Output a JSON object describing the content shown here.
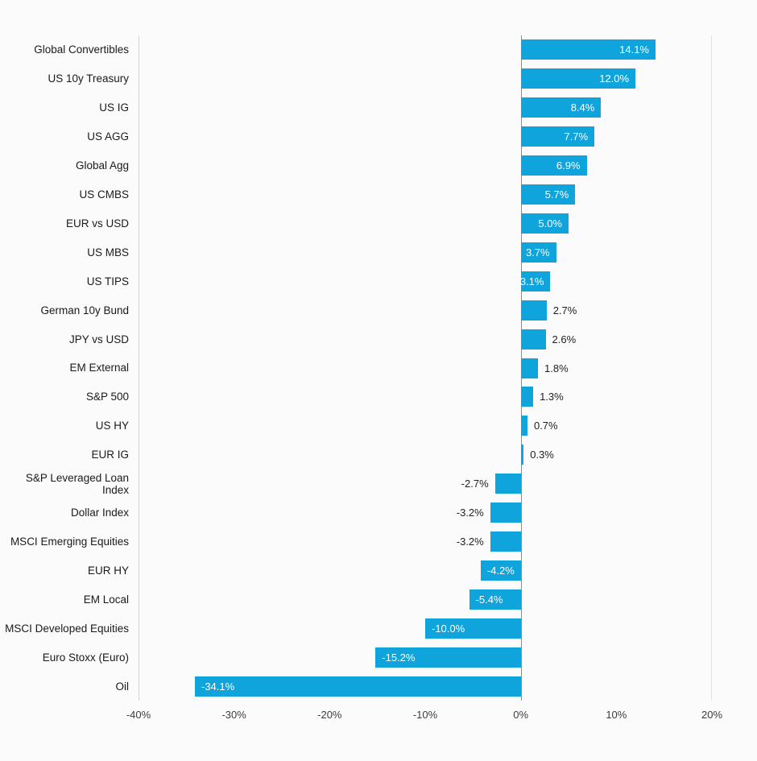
{
  "page": {
    "background": "#fbfbfb"
  },
  "chart_data": {
    "type": "bar",
    "orientation": "horizontal",
    "title": "",
    "xlabel": "",
    "ylabel": "",
    "categories": [
      "Global Convertibles",
      "US 10y Treasury",
      "US IG",
      "US AGG",
      "Global Agg",
      "US CMBS",
      "EUR vs USD",
      "US MBS",
      "US TIPS",
      "German 10y Bund",
      "JPY vs USD",
      "EM External",
      "S&P 500",
      "US HY",
      "EUR IG",
      "S&P Leveraged Loan Index",
      "Dollar Index",
      "MSCI Emerging Equities",
      "EUR HY",
      "EM Local",
      "MSCI Developed Equities",
      "Euro Stoxx (Euro)",
      "Oil"
    ],
    "values": [
      14.1,
      12.0,
      8.4,
      7.7,
      6.9,
      5.7,
      5.0,
      3.7,
      3.1,
      2.7,
      2.6,
      1.8,
      1.3,
      0.7,
      0.3,
      -2.7,
      -3.2,
      -3.2,
      -4.2,
      -5.4,
      -10.0,
      -15.2,
      -34.1
    ],
    "value_labels": [
      "14.1%",
      "12.0%",
      "8.4%",
      "7.7%",
      "6.9%",
      "5.7%",
      "5.0%",
      "3.7%",
      "3.1%",
      "2.7%",
      "2.6%",
      "1.8%",
      "1.3%",
      "0.7%",
      "0.3%",
      "-2.7%",
      "-3.2%",
      "-3.2%",
      "-4.2%",
      "-5.4%",
      "-10.0%",
      "-15.2%",
      "-34.1%"
    ],
    "xlim": [
      -40,
      20
    ],
    "xticks": [
      -40,
      -30,
      -20,
      -10,
      0,
      10,
      20
    ],
    "xtick_labels": [
      "-40%",
      "-30%",
      "-20%",
      "-10%",
      "0%",
      "10%",
      "20%"
    ],
    "bar_color": "#10a4dc",
    "inside_label_color": "#ffffff",
    "outside_label_color": "#1f1f1f",
    "zero_line_color": "#8c8c8c",
    "left_edge_line_color": "#d4d4d4",
    "right_edge_line_color": "#e2e2e2",
    "grid": false,
    "legend": "none"
  }
}
